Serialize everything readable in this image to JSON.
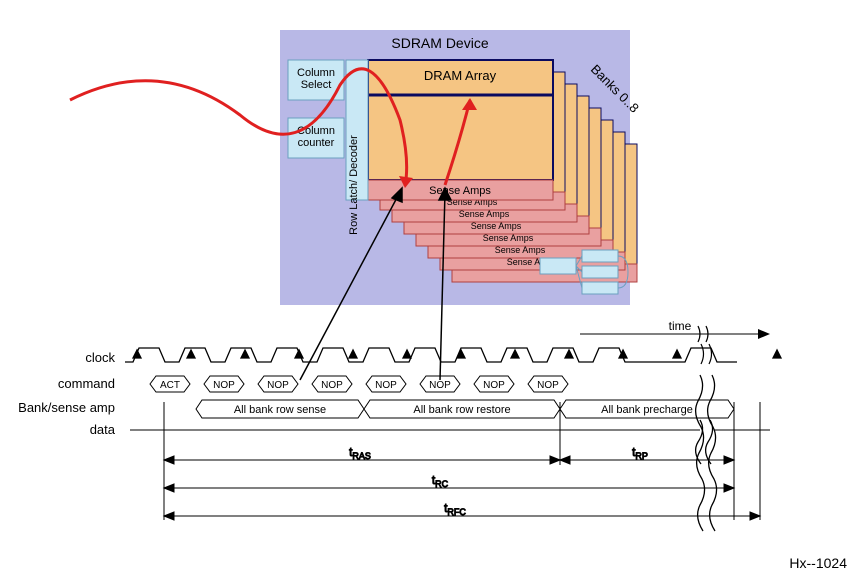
{
  "device": {
    "title": "SDRAM Device",
    "dram_array_label": "DRAM Array",
    "column_select_label": "Column Select",
    "column_counter_label": "Column counter",
    "row_latch_label": "Row Latch/ Decoder",
    "sense_amps_label": "Sense Amps",
    "banks_label": "Banks 0..8",
    "bg_color": "#b8b8e6",
    "array_fill": "#f5c583",
    "array_border": "#0a0a60",
    "light_block_fill": "#c9e8f5",
    "light_block_border": "#6aa0c0",
    "sense_fill": "#e9a0a0",
    "sense_border": "#b04040",
    "title_fontsize": 14,
    "label_fontsize": 12
  },
  "timing": {
    "rows": {
      "clock": "clock",
      "command": "command",
      "bank_sense": "Bank/sense amp",
      "data": "data",
      "time": "time"
    },
    "commands": [
      "ACT",
      "NOP",
      "NOP",
      "NOP",
      "NOP",
      "NOP",
      "NOP",
      "NOP"
    ],
    "phases": [
      "All bank row sense",
      "All bank row restore",
      "All bank precharge"
    ],
    "timing_labels": {
      "tras": "t",
      "tras_sub": "RAS",
      "trc": "t",
      "trc_sub": "RC",
      "trfc": "t",
      "trfc_sub": "RFC",
      "trp": "t",
      "trp_sub": "RP"
    },
    "clock_cycles": 12,
    "cycle_width": 54,
    "font_size": 12
  },
  "footer": {
    "hx": "Hx--1024"
  },
  "colors": {
    "black": "#000000",
    "red": "#e02020",
    "white": "#ffffff"
  }
}
